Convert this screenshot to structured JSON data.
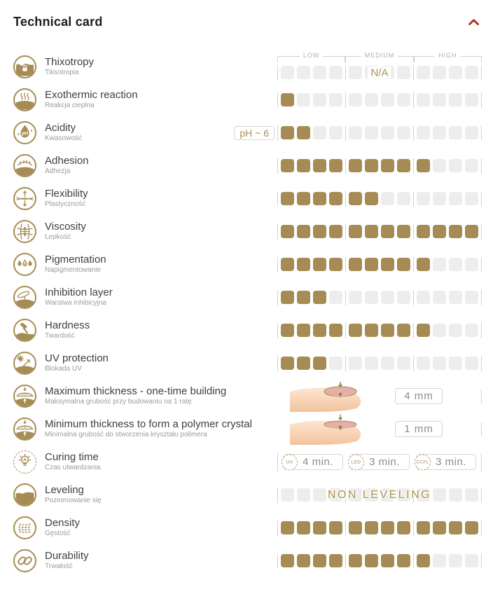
{
  "header": {
    "title": "Technical card",
    "collapse_icon": "chevron-up-icon"
  },
  "scale": {
    "labels": [
      "LOW",
      "MEDIUM",
      "HIGH"
    ],
    "segments": 3,
    "squares_per_segment": 4,
    "squares_total": 12
  },
  "colors": {
    "accent_gold": "#a68c54",
    "empty_square": "#ededeb",
    "chevron_red": "#b5281c",
    "value_text": "#8c8c8c"
  },
  "rows": [
    {
      "id": "thixotropy",
      "icon": "thixotropy-icon",
      "label_en": "Thixotropy",
      "label_pl": "Tiksotropia",
      "type": "scale",
      "filled": 0,
      "overlay": "N/A",
      "overlay_segment": "MEDIUM",
      "show_scale_header": true
    },
    {
      "id": "exothermic-reaction",
      "icon": "exothermic-reaction-icon",
      "label_en": "Exothermic reaction",
      "label_pl": "Reakcja cieplna",
      "type": "scale",
      "filled": 1
    },
    {
      "id": "acidity",
      "icon": "acidity-icon",
      "label_en": "Acidity",
      "label_pl": "Kwasowość",
      "type": "scale",
      "filled": 2,
      "badge": "pH ~ 6"
    },
    {
      "id": "adhesion",
      "icon": "adhesion-icon",
      "label_en": "Adhesion",
      "label_pl": "Adhezja",
      "type": "scale",
      "filled": 9
    },
    {
      "id": "flexibility",
      "icon": "flexibility-icon",
      "label_en": "Flexibility",
      "label_pl": "Plastyczność",
      "type": "scale",
      "filled": 6
    },
    {
      "id": "viscosity",
      "icon": "viscosity-icon",
      "label_en": "Viscosity",
      "label_pl": "Lepkość",
      "type": "scale",
      "filled": 12
    },
    {
      "id": "pigmentation",
      "icon": "pigmentation-icon",
      "label_en": "Pigmentation",
      "label_pl": "Napigmentowanie",
      "type": "scale",
      "filled": 9
    },
    {
      "id": "inhibition-layer",
      "icon": "inhibition-layer-icon",
      "label_en": "Inhibition layer",
      "label_pl": "Warstwa inhibicyjna",
      "type": "scale",
      "filled": 3
    },
    {
      "id": "hardness",
      "icon": "hardness-icon",
      "label_en": "Hardness",
      "label_pl": "Twardość",
      "type": "scale",
      "filled": 9
    },
    {
      "id": "uv-protection",
      "icon": "uv-protection-icon",
      "label_en": "UV protection",
      "label_pl": "Blokada UV",
      "type": "scale",
      "filled": 3
    },
    {
      "id": "maximum-thickness",
      "icon": "max-thickness-icon",
      "label_en": "Maximum thickness - one-time building",
      "label_pl": "Maksymalna grubość przy budowaniu na 1 ratę",
      "type": "thickness",
      "value": "4 mm"
    },
    {
      "id": "minimum-thickness",
      "icon": "min-thickness-icon",
      "label_en": "Minimum thickness to form a polymer crystal",
      "label_pl": "Minimalna grubość do stworzenia kryształu polimera",
      "type": "thickness",
      "value": "1 mm"
    },
    {
      "id": "curing-time",
      "icon": "curing-time-icon",
      "label_en": "Curing time",
      "label_pl": "Czas utwardzania",
      "type": "curing",
      "items": [
        {
          "lamp": "UV",
          "time": "4 min."
        },
        {
          "lamp": "LED",
          "time": "3 min."
        },
        {
          "lamp": "CCFL",
          "time": "3 min."
        }
      ]
    },
    {
      "id": "leveling",
      "icon": "leveling-icon",
      "label_en": "Leveling",
      "label_pl": "Poziomowanie się",
      "type": "leveling",
      "filled": 0,
      "overlay": "NON LEVELING"
    },
    {
      "id": "density",
      "icon": "density-icon",
      "label_en": "Density",
      "label_pl": "Gęstość",
      "type": "scale",
      "filled": 12
    },
    {
      "id": "durability",
      "icon": "durability-icon",
      "label_en": "Durability",
      "label_pl": "Trwałość",
      "type": "scale",
      "filled": 9
    }
  ]
}
